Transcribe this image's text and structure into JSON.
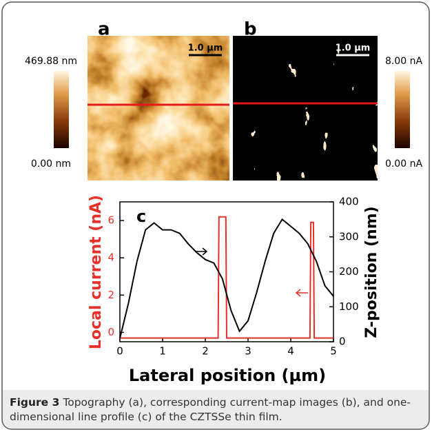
{
  "panels": [
    {
      "label": "a",
      "scale_bar": "1.0 µm",
      "colorbar": {
        "max": "469.88 nm",
        "min": "0.00 nm"
      }
    },
    {
      "label": "b",
      "scale_bar": "1.0 µm",
      "colorbar": {
        "max": "8.00 nA",
        "min": "0.00 nA"
      }
    }
  ],
  "chart_data": {
    "type": "line",
    "title": "c",
    "x_label": "Lateral position (µm)",
    "y_label": "Local current (nA)",
    "y2_label": "Z-position (nm)",
    "xlim": [
      0,
      5
    ],
    "xticks": [
      0,
      1,
      2,
      3,
      4,
      5
    ],
    "ylim": [
      -0.5,
      7
    ],
    "yticks": [
      0,
      2,
      4,
      6
    ],
    "y2lim": [
      0,
      400
    ],
    "y2ticks": [
      0,
      100,
      200,
      300,
      400
    ],
    "series": [
      {
        "color": "#e8302a",
        "x": [
          0,
          2.3,
          2.32,
          2.48,
          2.5,
          4.45,
          4.47,
          4.53,
          4.55,
          5
        ],
        "values": [
          -0.3,
          -0.3,
          6.2,
          6.2,
          -0.3,
          -0.3,
          5.9,
          5.9,
          -0.3,
          -0.3
        ]
      },
      {
        "color": "#000000",
        "axis": "y2",
        "x": [
          0,
          0.2,
          0.4,
          0.6,
          0.8,
          1.0,
          1.2,
          1.4,
          1.6,
          1.8,
          2.0,
          2.2,
          2.4,
          2.6,
          2.8,
          3.0,
          3.2,
          3.4,
          3.6,
          3.8,
          4.0,
          4.2,
          4.4,
          4.6,
          4.8,
          5.0
        ],
        "values": [
          10,
          110,
          230,
          320,
          340,
          320,
          320,
          310,
          280,
          255,
          235,
          225,
          180,
          90,
          30,
          60,
          140,
          230,
          310,
          350,
          330,
          310,
          280,
          230,
          160,
          130
        ]
      }
    ]
  },
  "caption": {
    "label": "Figure 3",
    "text": "Topography (a), corresponding current-map images (b), and one-dimensional line profile (c) of the CZTSSe thin film."
  }
}
